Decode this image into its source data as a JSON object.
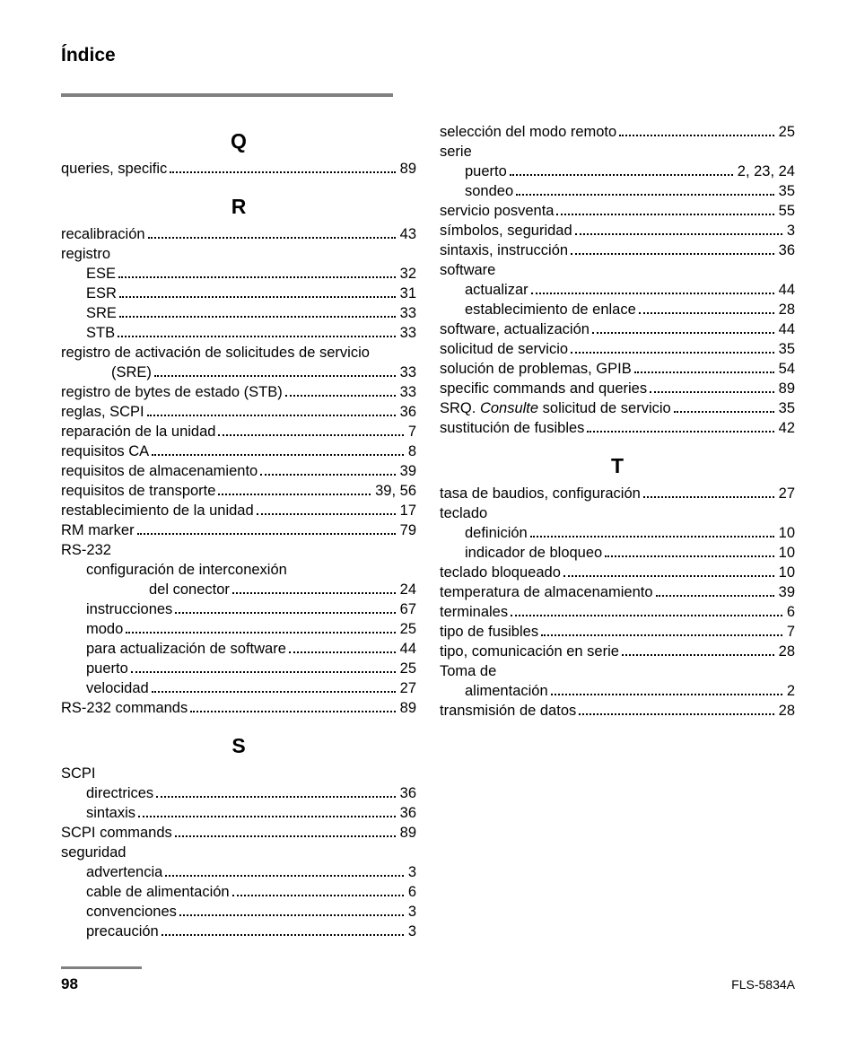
{
  "header": {
    "title": "Índice"
  },
  "footer": {
    "page": "98",
    "doc": "FLS-5834A"
  },
  "left": {
    "sections": [
      {
        "letter": "Q",
        "rows": [
          {
            "term": "queries, specific",
            "page": "89",
            "indent": 0
          }
        ]
      },
      {
        "letter": "R",
        "rows": [
          {
            "term": "recalibración",
            "page": "43",
            "indent": 0
          },
          {
            "term": "registro",
            "nolead": true,
            "indent": 0
          },
          {
            "term": "ESE",
            "page": "32",
            "indent": 1
          },
          {
            "term": "ESR",
            "page": "31",
            "indent": 1
          },
          {
            "term": "SRE",
            "page": "33",
            "indent": 1
          },
          {
            "term": "STB",
            "page": "33",
            "indent": 1
          },
          {
            "term": "registro de activación de solicitudes de servicio",
            "wrap": true,
            "indent": 0
          },
          {
            "term": "(SRE)",
            "page": "33",
            "indent": 2
          },
          {
            "term": "registro de bytes de estado (STB)",
            "page": "33",
            "indent": 0
          },
          {
            "term": "reglas, SCPI",
            "page": "36",
            "indent": 0
          },
          {
            "term": "reparación de la unidad",
            "page": "7",
            "indent": 0
          },
          {
            "term": "requisitos CA",
            "page": "8",
            "indent": 0
          },
          {
            "term": "requisitos de almacenamiento",
            "page": "39",
            "indent": 0
          },
          {
            "term": "requisitos de transporte",
            "page": "39, 56",
            "indent": 0
          },
          {
            "term": "restablecimiento de la unidad",
            "page": "17",
            "indent": 0
          },
          {
            "term": "RM marker",
            "page": "79",
            "indent": 0
          },
          {
            "term": "RS-232",
            "nolead": true,
            "indent": 0
          },
          {
            "term": "configuración de interconexión",
            "nolead": true,
            "indent": 1
          },
          {
            "term": "del conector",
            "page": "24",
            "indent": 3
          },
          {
            "term": "instrucciones",
            "page": "67",
            "indent": 1
          },
          {
            "term": "modo",
            "page": "25",
            "indent": 1
          },
          {
            "term": "para actualización de software",
            "page": "44",
            "indent": 1
          },
          {
            "term": "puerto",
            "page": "25",
            "indent": 1
          },
          {
            "term": "velocidad",
            "page": "27",
            "indent": 1
          },
          {
            "term": "RS-232 commands",
            "page": "89",
            "indent": 0
          }
        ]
      },
      {
        "letter": "S",
        "rows": [
          {
            "term": "SCPI",
            "nolead": true,
            "indent": 0
          },
          {
            "term": "directrices",
            "page": "36",
            "indent": 1
          },
          {
            "term": "sintaxis",
            "page": "36",
            "indent": 1
          },
          {
            "term": "SCPI commands",
            "page": "89",
            "indent": 0
          },
          {
            "term": "seguridad",
            "nolead": true,
            "indent": 0
          },
          {
            "term": "advertencia",
            "page": "3",
            "indent": 1
          },
          {
            "term": "cable de alimentación",
            "page": "6",
            "indent": 1
          },
          {
            "term": "convenciones",
            "page": "3",
            "indent": 1
          },
          {
            "term": "precaución",
            "page": "3",
            "indent": 1
          }
        ]
      }
    ]
  },
  "right": {
    "sections": [
      {
        "letter": "",
        "rows": [
          {
            "term": "selección del modo remoto",
            "page": "25",
            "indent": 0
          },
          {
            "term": "serie",
            "nolead": true,
            "indent": 0
          },
          {
            "term": "puerto",
            "page": "2, 23, 24",
            "indent": 1
          },
          {
            "term": "sondeo",
            "page": "35",
            "indent": 1
          },
          {
            "term": "servicio posventa",
            "page": "55",
            "indent": 0
          },
          {
            "term": "símbolos, seguridad",
            "page": "3",
            "indent": 0
          },
          {
            "term": "sintaxis, instrucción",
            "page": "36",
            "indent": 0
          },
          {
            "term": "software",
            "nolead": true,
            "indent": 0
          },
          {
            "term": "actualizar",
            "page": "44",
            "indent": 1
          },
          {
            "term": "establecimiento de enlace",
            "page": "28",
            "indent": 1
          },
          {
            "term": "software, actualización",
            "page": "44",
            "indent": 0
          },
          {
            "term": "solicitud de servicio",
            "page": "35",
            "indent": 0
          },
          {
            "term": "solución de problemas, GPIB",
            "page": "54",
            "indent": 0
          },
          {
            "term": "specific commands and queries",
            "page": "89",
            "indent": 0
          },
          {
            "term_html": "SRQ. <span class='em'>Consulte</span> solicitud de servicio",
            "page": "35",
            "indent": 0
          },
          {
            "term": "sustitución de fusibles",
            "page": "42",
            "indent": 0
          }
        ]
      },
      {
        "letter": "T",
        "rows": [
          {
            "term": "tasa de baudios, configuración",
            "page": "27",
            "indent": 0
          },
          {
            "term": "teclado",
            "nolead": true,
            "indent": 0
          },
          {
            "term": "definición",
            "page": "10",
            "indent": 1
          },
          {
            "term": "indicador de bloqueo",
            "page": "10",
            "indent": 1
          },
          {
            "term": "teclado bloqueado",
            "page": "10",
            "indent": 0
          },
          {
            "term": "temperatura de almacenamiento",
            "page": "39",
            "indent": 0
          },
          {
            "term": "terminales",
            "page": "6",
            "indent": 0
          },
          {
            "term": "tipo de fusibles",
            "page": "7",
            "indent": 0
          },
          {
            "term": "tipo, comunicación en serie",
            "page": "28",
            "indent": 0
          },
          {
            "term": "Toma de",
            "nolead": true,
            "indent": 0
          },
          {
            "term": "alimentación",
            "page": "2",
            "indent": 1
          },
          {
            "term": "transmisión de datos",
            "page": "28",
            "indent": 0
          }
        ]
      }
    ]
  }
}
